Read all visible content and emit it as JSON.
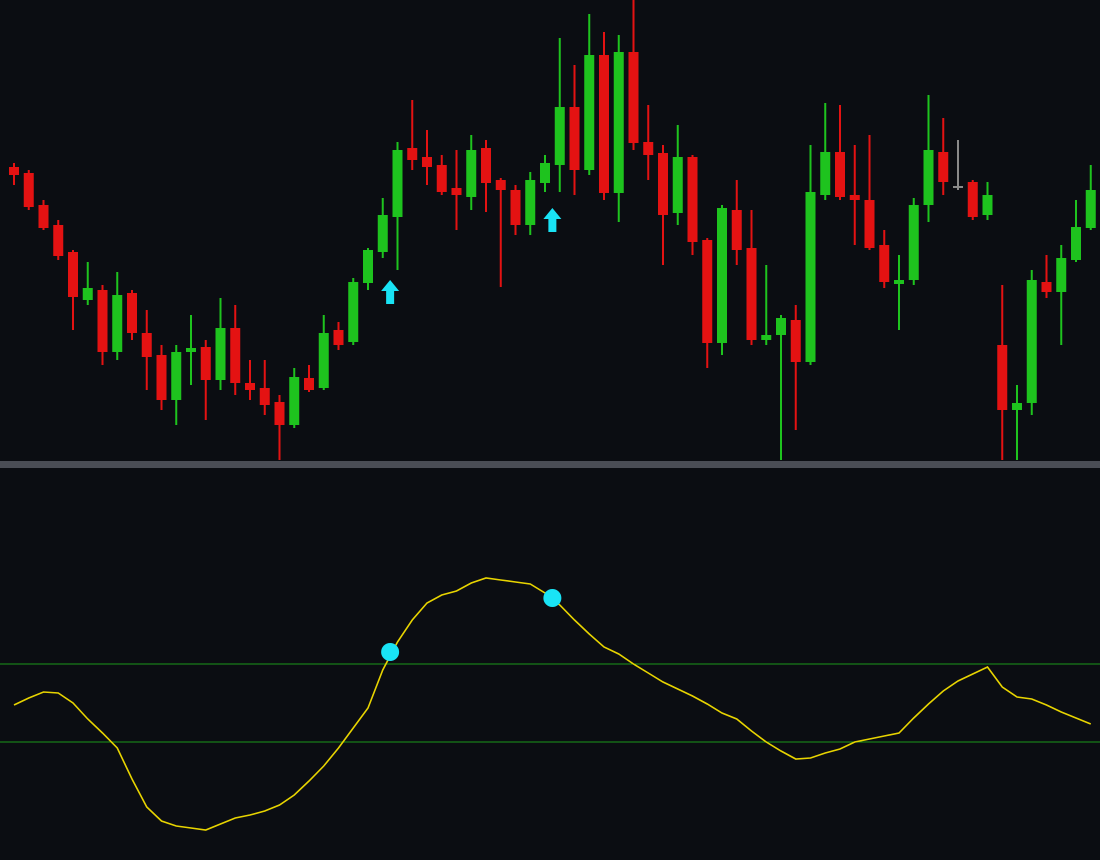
{
  "chart_data": [
    {
      "type": "candlestick",
      "up_color": "#1ec31e",
      "down_color": "#e41212",
      "flat_color": "#8a8a8a",
      "arrow_color": "#19e3f5",
      "ylim": [
        0,
        460
      ],
      "open": [
        293,
        287,
        255,
        235,
        208,
        160,
        170,
        108,
        167,
        127,
        105,
        60,
        108,
        113,
        80,
        132,
        77,
        72,
        58,
        35,
        82,
        72,
        130,
        118,
        177,
        208,
        243,
        312,
        303,
        295,
        272,
        263,
        312,
        280,
        270,
        235,
        277,
        295,
        353,
        290,
        405,
        267,
        408,
        318,
        307,
        247,
        303,
        220,
        117,
        250,
        212,
        120,
        125,
        140,
        98,
        265,
        308,
        265,
        260,
        215,
        176,
        180,
        255,
        308,
        274,
        278,
        245,
        115,
        50,
        57,
        178,
        168,
        200,
        232
      ],
      "high": [
        297,
        290,
        260,
        240,
        210,
        198,
        175,
        188,
        170,
        150,
        115,
        115,
        145,
        120,
        162,
        155,
        100,
        100,
        65,
        92,
        95,
        145,
        138,
        182,
        212,
        262,
        318,
        360,
        330,
        305,
        310,
        325,
        320,
        282,
        275,
        288,
        305,
        422,
        395,
        446,
        428,
        425,
        460,
        355,
        315,
        335,
        305,
        222,
        255,
        280,
        250,
        195,
        145,
        155,
        315,
        357,
        355,
        315,
        325,
        230,
        205,
        262,
        365,
        342,
        320,
        280,
        278,
        175,
        75,
        190,
        205,
        215,
        260,
        295
      ],
      "low": [
        275,
        250,
        230,
        200,
        130,
        155,
        95,
        100,
        120,
        70,
        50,
        35,
        75,
        40,
        70,
        65,
        60,
        45,
        0,
        32,
        68,
        70,
        110,
        115,
        170,
        202,
        190,
        290,
        275,
        265,
        230,
        250,
        248,
        173,
        225,
        225,
        268,
        268,
        265,
        285,
        260,
        238,
        310,
        280,
        195,
        235,
        205,
        92,
        105,
        195,
        115,
        115,
        0,
        30,
        95,
        260,
        260,
        215,
        210,
        172,
        130,
        175,
        238,
        265,
        270,
        240,
        240,
        0,
        0,
        45,
        162,
        115,
        198,
        230
      ],
      "close": [
        285,
        253,
        232,
        204,
        163,
        172,
        108,
        165,
        127,
        103,
        60,
        108,
        112,
        80,
        132,
        77,
        70,
        55,
        35,
        83,
        70,
        127,
        115,
        178,
        210,
        245,
        310,
        300,
        293,
        268,
        265,
        310,
        277,
        270,
        235,
        280,
        297,
        353,
        290,
        405,
        267,
        408,
        317,
        305,
        245,
        303,
        218,
        117,
        252,
        210,
        120,
        125,
        142,
        98,
        268,
        308,
        263,
        260,
        212,
        178,
        180,
        255,
        310,
        278,
        274,
        243,
        265,
        50,
        57,
        180,
        168,
        202,
        233,
        270
      ],
      "arrows": [
        null,
        null,
        null,
        null,
        null,
        null,
        null,
        null,
        null,
        null,
        null,
        null,
        null,
        null,
        null,
        null,
        null,
        null,
        null,
        null,
        null,
        null,
        null,
        null,
        null,
        180,
        null,
        null,
        null,
        null,
        null,
        null,
        null,
        null,
        null,
        null,
        252,
        null,
        null,
        null,
        null,
        null,
        null,
        null,
        null,
        null,
        null,
        null,
        null,
        null,
        null,
        null,
        null,
        null,
        null,
        null,
        null,
        null,
        null,
        null,
        null,
        null,
        null,
        null,
        null,
        null,
        null,
        null,
        null,
        null,
        null,
        null,
        null,
        null
      ]
    },
    {
      "type": "line",
      "color": "#e8d400",
      "level_color": "#1b961b",
      "dot_color": "#19e3f5",
      "ylim": [
        0,
        392
      ],
      "levels": [
        196,
        118
      ],
      "values": [
        155,
        162,
        168,
        167,
        157,
        141,
        127,
        112,
        81,
        53,
        39,
        34,
        32,
        30,
        36,
        42,
        45,
        49,
        55,
        65,
        79,
        94,
        112,
        132,
        152,
        190,
        218,
        240,
        257,
        265,
        269,
        277,
        282,
        280,
        278,
        276,
        267,
        255,
        240,
        226,
        213,
        206,
        196,
        187,
        178,
        171,
        164,
        156,
        147,
        141,
        129,
        118,
        109,
        101,
        102,
        107,
        111,
        118,
        121,
        124,
        127,
        142,
        156,
        169,
        179,
        186,
        193,
        173,
        163,
        161,
        155,
        148,
        142,
        136
      ],
      "dots": [
        null,
        null,
        null,
        null,
        null,
        null,
        null,
        null,
        null,
        null,
        null,
        null,
        null,
        null,
        null,
        null,
        null,
        null,
        null,
        null,
        null,
        null,
        null,
        null,
        null,
        208,
        null,
        null,
        null,
        null,
        null,
        null,
        null,
        null,
        null,
        null,
        262,
        null,
        null,
        null,
        null,
        null,
        null,
        null,
        null,
        null,
        null,
        null,
        null,
        null,
        null,
        null,
        null,
        null,
        null,
        null,
        null,
        null,
        null,
        null,
        null,
        null,
        null,
        null,
        null,
        null,
        null,
        null,
        null,
        null,
        null,
        null,
        null,
        null
      ]
    }
  ]
}
